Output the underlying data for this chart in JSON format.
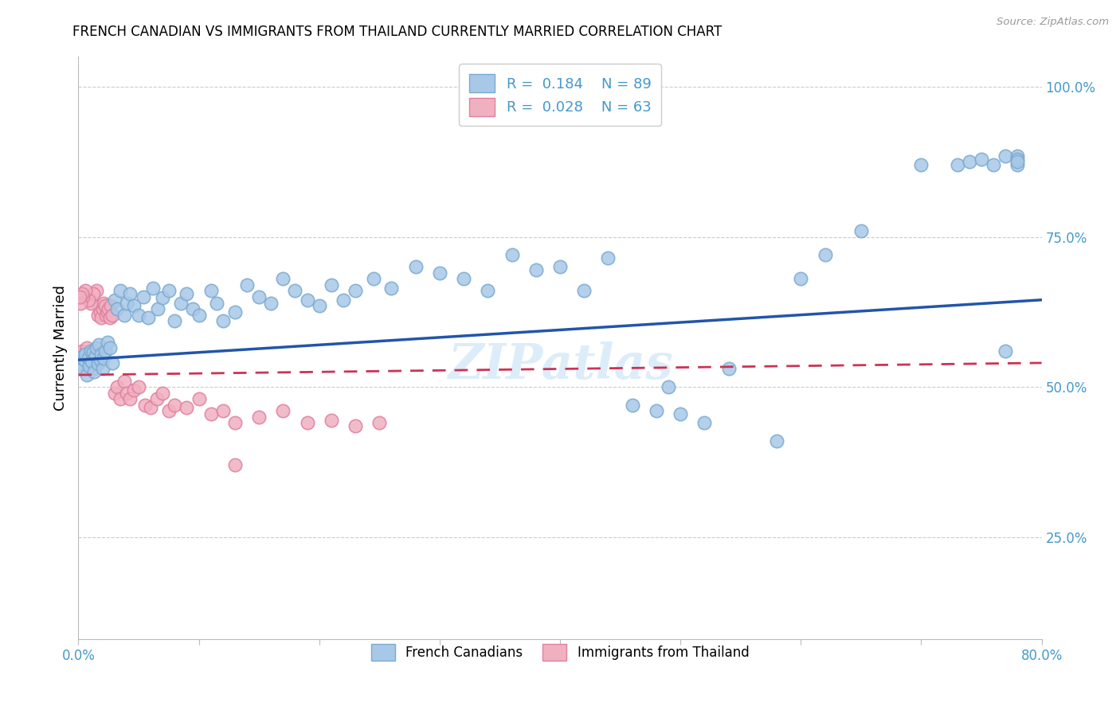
{
  "title": "FRENCH CANADIAN VS IMMIGRANTS FROM THAILAND CURRENTLY MARRIED CORRELATION CHART",
  "source": "Source: ZipAtlas.com",
  "ylabel": "Currently Married",
  "r_blue": 0.184,
  "n_blue": 89,
  "r_pink": 0.028,
  "n_pink": 63,
  "blue_color": "#a8c8e8",
  "blue_edge_color": "#7aaad0",
  "pink_color": "#f0b0c0",
  "pink_edge_color": "#e080a0",
  "blue_line_color": "#2255aa",
  "pink_line_color": "#cc3355",
  "axis_color": "#4499cc",
  "watermark": "ZIPatlas",
  "xlim": [
    0.0,
    0.8
  ],
  "ylim": [
    0.08,
    1.05
  ],
  "yticks_right": [
    0.25,
    0.5,
    0.75,
    1.0
  ],
  "yticklabels_right": [
    "25.0%",
    "50.0%",
    "75.0%",
    "100.0%"
  ],
  "blue_x": [
    0.002,
    0.003,
    0.004,
    0.005,
    0.006,
    0.007,
    0.008,
    0.009,
    0.01,
    0.011,
    0.012,
    0.013,
    0.014,
    0.015,
    0.016,
    0.017,
    0.018,
    0.019,
    0.02,
    0.021,
    0.022,
    0.024,
    0.026,
    0.028,
    0.03,
    0.032,
    0.035,
    0.038,
    0.04,
    0.043,
    0.046,
    0.05,
    0.054,
    0.058,
    0.062,
    0.066,
    0.07,
    0.075,
    0.08,
    0.085,
    0.09,
    0.095,
    0.1,
    0.11,
    0.115,
    0.12,
    0.13,
    0.14,
    0.15,
    0.16,
    0.17,
    0.18,
    0.19,
    0.2,
    0.21,
    0.22,
    0.23,
    0.245,
    0.26,
    0.28,
    0.3,
    0.32,
    0.34,
    0.36,
    0.38,
    0.4,
    0.42,
    0.44,
    0.46,
    0.48,
    0.49,
    0.5,
    0.52,
    0.54,
    0.58,
    0.6,
    0.62,
    0.65,
    0.7,
    0.73,
    0.74,
    0.75,
    0.76,
    0.77,
    0.77,
    0.78,
    0.78,
    0.78,
    0.78
  ],
  "blue_y": [
    0.54,
    0.55,
    0.53,
    0.545,
    0.555,
    0.52,
    0.548,
    0.535,
    0.56,
    0.542,
    0.558,
    0.525,
    0.552,
    0.565,
    0.538,
    0.57,
    0.545,
    0.555,
    0.53,
    0.548,
    0.56,
    0.575,
    0.565,
    0.54,
    0.645,
    0.63,
    0.66,
    0.62,
    0.64,
    0.655,
    0.635,
    0.62,
    0.65,
    0.615,
    0.665,
    0.63,
    0.648,
    0.66,
    0.61,
    0.64,
    0.655,
    0.63,
    0.62,
    0.66,
    0.64,
    0.61,
    0.625,
    0.67,
    0.65,
    0.64,
    0.68,
    0.66,
    0.645,
    0.635,
    0.67,
    0.645,
    0.66,
    0.68,
    0.665,
    0.7,
    0.69,
    0.68,
    0.66,
    0.72,
    0.695,
    0.7,
    0.66,
    0.715,
    0.47,
    0.46,
    0.5,
    0.455,
    0.44,
    0.53,
    0.41,
    0.68,
    0.72,
    0.76,
    0.87,
    0.87,
    0.875,
    0.88,
    0.87,
    0.885,
    0.56,
    0.87,
    0.885,
    0.88,
    0.875
  ],
  "pink_x": [
    0.001,
    0.002,
    0.003,
    0.004,
    0.005,
    0.006,
    0.007,
    0.008,
    0.009,
    0.01,
    0.011,
    0.012,
    0.013,
    0.014,
    0.015,
    0.016,
    0.017,
    0.018,
    0.019,
    0.02,
    0.021,
    0.022,
    0.023,
    0.024,
    0.025,
    0.026,
    0.027,
    0.028,
    0.03,
    0.032,
    0.035,
    0.038,
    0.04,
    0.043,
    0.046,
    0.05,
    0.055,
    0.06,
    0.065,
    0.07,
    0.075,
    0.08,
    0.09,
    0.1,
    0.11,
    0.12,
    0.13,
    0.15,
    0.17,
    0.19,
    0.21,
    0.23,
    0.25,
    0.015,
    0.01,
    0.012,
    0.008,
    0.006,
    0.004,
    0.003,
    0.002,
    0.001,
    0.13
  ],
  "pink_y": [
    0.54,
    0.555,
    0.56,
    0.55,
    0.53,
    0.545,
    0.565,
    0.535,
    0.555,
    0.54,
    0.56,
    0.55,
    0.53,
    0.558,
    0.545,
    0.62,
    0.635,
    0.625,
    0.615,
    0.63,
    0.64,
    0.635,
    0.62,
    0.625,
    0.63,
    0.615,
    0.635,
    0.62,
    0.49,
    0.5,
    0.48,
    0.51,
    0.49,
    0.48,
    0.495,
    0.5,
    0.47,
    0.465,
    0.48,
    0.49,
    0.46,
    0.47,
    0.465,
    0.48,
    0.455,
    0.46,
    0.44,
    0.45,
    0.46,
    0.44,
    0.445,
    0.435,
    0.44,
    0.66,
    0.64,
    0.655,
    0.645,
    0.66,
    0.65,
    0.655,
    0.64,
    0.65,
    0.37
  ],
  "blue_trend_start": 0.545,
  "blue_trend_end": 0.645,
  "pink_trend_start": 0.52,
  "pink_trend_end": 0.54
}
